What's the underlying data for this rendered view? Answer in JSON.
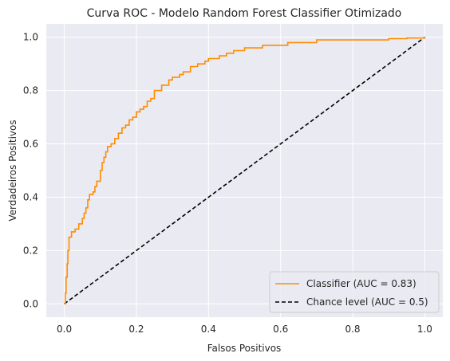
{
  "chart_data": {
    "type": "line",
    "title": "Curva ROC - Modelo Random Forest Classifier Otimizado",
    "xlabel": "Falsos Positivos",
    "ylabel": "Verdadeiros Positivos",
    "xlim": [
      -0.05,
      1.05
    ],
    "ylim": [
      -0.05,
      1.05
    ],
    "xticks": [
      0.0,
      0.2,
      0.4,
      0.6,
      0.8,
      1.0
    ],
    "yticks": [
      0.0,
      0.2,
      0.4,
      0.6,
      0.8,
      1.0
    ],
    "xtick_labels": [
      "0.0",
      "0.2",
      "0.4",
      "0.6",
      "0.8",
      "1.0"
    ],
    "ytick_labels": [
      "0.0",
      "0.2",
      "0.4",
      "0.6",
      "0.8",
      "1.0"
    ],
    "grid": true,
    "background": "#eaeaf2",
    "legend_position": "bottom-right",
    "series": [
      {
        "name": "Classifier (AUC = 0.83)",
        "color": "#ff8c00",
        "style": "solid",
        "x": [
          0.0,
          0.003,
          0.005,
          0.008,
          0.01,
          0.013,
          0.02,
          0.03,
          0.04,
          0.05,
          0.055,
          0.06,
          0.065,
          0.07,
          0.08,
          0.085,
          0.09,
          0.1,
          0.105,
          0.11,
          0.115,
          0.12,
          0.13,
          0.14,
          0.15,
          0.16,
          0.17,
          0.18,
          0.19,
          0.2,
          0.21,
          0.22,
          0.23,
          0.24,
          0.25,
          0.27,
          0.29,
          0.3,
          0.32,
          0.33,
          0.35,
          0.37,
          0.39,
          0.4,
          0.41,
          0.43,
          0.45,
          0.47,
          0.49,
          0.5,
          0.52,
          0.55,
          0.58,
          0.6,
          0.62,
          0.65,
          0.68,
          0.7,
          0.72,
          0.75,
          0.8,
          0.85,
          0.9,
          0.95,
          1.0
        ],
        "y": [
          0.0,
          0.04,
          0.1,
          0.15,
          0.2,
          0.25,
          0.27,
          0.28,
          0.3,
          0.32,
          0.34,
          0.36,
          0.39,
          0.41,
          0.42,
          0.44,
          0.46,
          0.5,
          0.53,
          0.55,
          0.57,
          0.59,
          0.6,
          0.62,
          0.64,
          0.66,
          0.67,
          0.69,
          0.7,
          0.72,
          0.73,
          0.74,
          0.76,
          0.77,
          0.8,
          0.82,
          0.84,
          0.85,
          0.86,
          0.87,
          0.89,
          0.9,
          0.91,
          0.92,
          0.92,
          0.93,
          0.94,
          0.95,
          0.95,
          0.96,
          0.96,
          0.97,
          0.97,
          0.97,
          0.98,
          0.98,
          0.98,
          0.99,
          0.99,
          0.99,
          0.99,
          0.99,
          0.995,
          0.997,
          1.0
        ]
      },
      {
        "name": "Chance level (AUC = 0.5)",
        "color": "#000000",
        "style": "dashed",
        "x": [
          0.0,
          1.0
        ],
        "y": [
          0.0,
          1.0
        ]
      }
    ]
  }
}
